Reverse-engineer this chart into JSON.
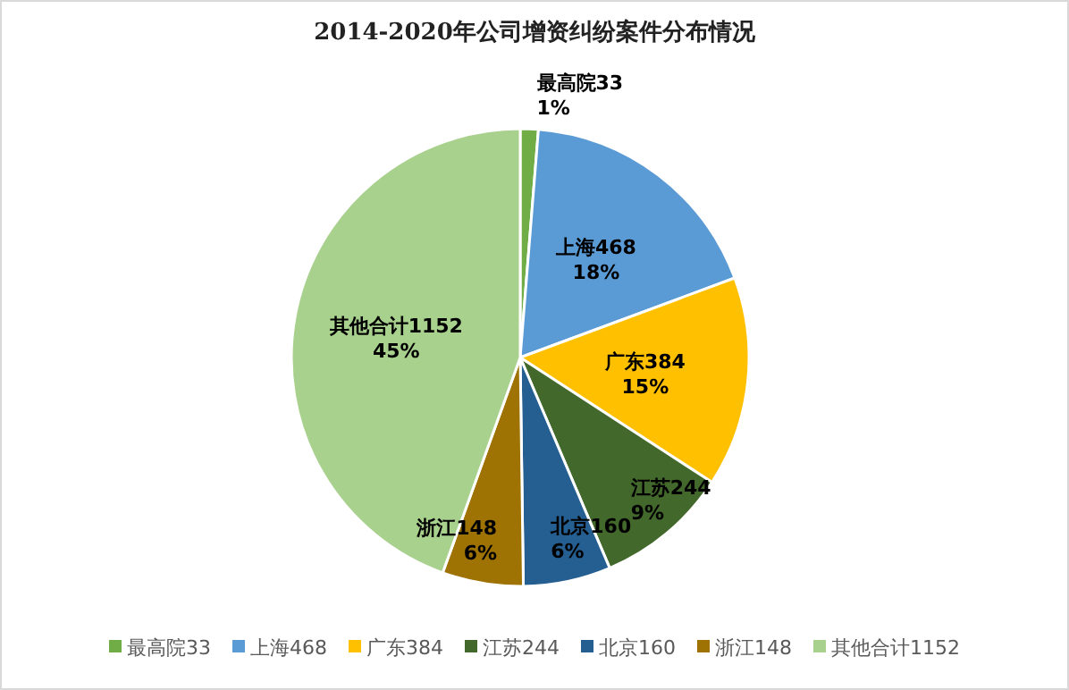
{
  "chart_data": {
    "type": "pie",
    "title": "2014-2020年公司增资纠纷案件分布情况",
    "categories": [
      "最高院33",
      "上海468",
      "广东384",
      "江苏244",
      "北京160",
      "浙江148",
      "其他合计1152"
    ],
    "values": [
      1.27,
      18.08,
      14.83,
      9.42,
      6.18,
      5.72,
      44.5
    ],
    "value_labels": [
      "1%",
      "18%",
      "15%",
      "9%",
      "6%",
      "6%",
      "45%"
    ],
    "colors": [
      "#70ad47",
      "#5b9bd5",
      "#ffc000",
      "#43682b",
      "#255e91",
      "#9e7203",
      "#a9d18e"
    ],
    "legend": "bottom"
  }
}
